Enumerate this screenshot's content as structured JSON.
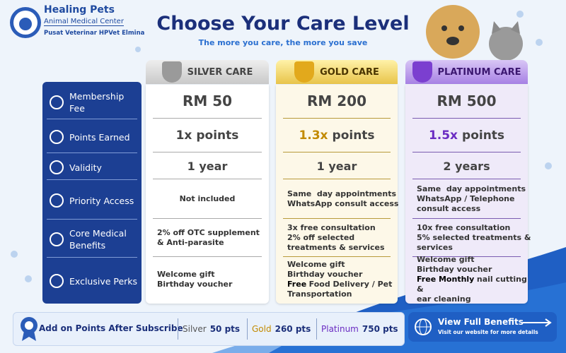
{
  "brand": {
    "name": "Healing Pets",
    "tagline": "Animal Medical Center",
    "subname": "Pusat Veterinar HPVet Elmina"
  },
  "header": {
    "title": "Choose Your Care Level",
    "subtitle": "The more you care, the more you save"
  },
  "rows": [
    "Membership Fee",
    "Points Earned",
    "Validity",
    "Priority Access",
    "Core Medical Benefits",
    "Exclusive Perks"
  ],
  "tiers": [
    {
      "name": "SILVER CARE",
      "fee": "RM 50",
      "multiplier": "1x",
      "points": "points",
      "validity": "1 year",
      "priority": [
        "Not included"
      ],
      "medical": [
        "2% off OTC supplement",
        "& Anti-parasite"
      ],
      "perks": [
        [
          "Welcome gift"
        ],
        [
          "Birthday voucher"
        ]
      ]
    },
    {
      "name": "GOLD CARE",
      "fee": "RM 200",
      "multiplier": "1.3x",
      "points": "points",
      "validity": "1 year",
      "priority": [
        "Same  day appointments",
        "WhatsApp consult access"
      ],
      "medical": [
        "3x free consultation",
        "2% off selected",
        "treatments & services"
      ],
      "perks": [
        [
          "Welcome gift"
        ],
        [
          "Birthday voucher"
        ],
        [
          "Free",
          "Food Delivery / Pet"
        ],
        [
          "Transportation"
        ]
      ]
    },
    {
      "name": "PLATINUM CARE",
      "fee": "RM 500",
      "multiplier": "1.5x",
      "points": "points",
      "validity": "2 years",
      "priority": [
        "Same  day appointments",
        "WhatsApp / Telephone",
        "consult access"
      ],
      "medical": [
        "10x free consultation",
        "5% selected treatments &",
        "services"
      ],
      "perks": [
        [
          "Welcome gift"
        ],
        [
          "Birthday voucher"
        ],
        [
          "Free Monthly",
          "nail cutting &"
        ],
        [
          "ear cleaning"
        ]
      ]
    }
  ],
  "footer": {
    "label": "Add on Points After Subscribe",
    "addons": [
      {
        "tier": "Silver",
        "points": "50 pts"
      },
      {
        "tier": "Gold",
        "points": "260 pts"
      },
      {
        "tier": "Platinum",
        "points": "750 pts"
      }
    ],
    "button": {
      "title": "View Full Benefits",
      "subtitle": "Visit our website for more details"
    }
  }
}
